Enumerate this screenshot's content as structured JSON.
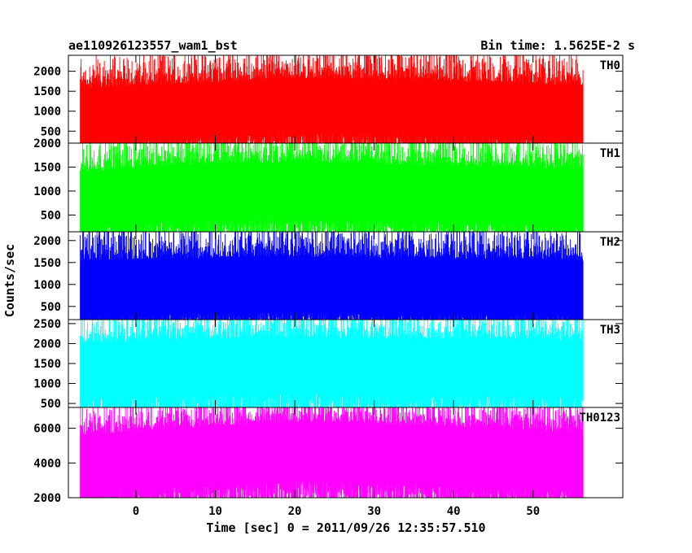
{
  "title_left": "ae110926123557_wam1_bst",
  "title_right": "Bin time: 1.5625E-2 s",
  "chart_data": {
    "type": "line",
    "xlabel": "Time [sec] 0 = 2011/09/26 12:35:57.510",
    "ylabel": "Counts/sec",
    "xlim": [
      -8.5,
      61.3
    ],
    "x_ticks": [
      0,
      10,
      20,
      30,
      40,
      50
    ],
    "x_ticks_labels": [
      "0",
      "10",
      "20",
      "30",
      "40",
      "50"
    ],
    "data_x_range": [
      -7.0,
      56.3
    ],
    "bin_time": 0.015625,
    "grid": false,
    "panels": [
      {
        "name": "TH0",
        "color": "#ff0000",
        "ylim": [
          200,
          2400
        ],
        "yticks": [
          500,
          1000,
          1500,
          2000
        ],
        "yticks_labels": [
          "500",
          "1000",
          "1500",
          "2000"
        ],
        "mean": 1050,
        "noise_low": 300,
        "noise_high": 2400,
        "envelope": [
          [
            -7,
            950
          ],
          [
            5,
            1050
          ],
          [
            20,
            1200
          ],
          [
            35,
            1150
          ],
          [
            50,
            1050
          ],
          [
            56.3,
            1000
          ]
        ]
      },
      {
        "name": "TH1",
        "color": "#00ff00",
        "ylim": [
          150,
          2000
        ],
        "yticks": [
          500,
          1000,
          1500,
          2000
        ],
        "yticks_labels": [
          "500",
          "1000",
          "1500",
          "2000"
        ],
        "mean": 950,
        "noise_low": 200,
        "noise_high": 2000,
        "envelope": [
          [
            -7,
            850
          ],
          [
            5,
            1000
          ],
          [
            20,
            1050
          ],
          [
            35,
            1000
          ],
          [
            50,
            950
          ],
          [
            56.3,
            900
          ]
        ]
      },
      {
        "name": "TH2",
        "color": "#0000ff",
        "ylim": [
          200,
          2200
        ],
        "yticks": [
          500,
          1000,
          1500,
          2000
        ],
        "yticks_labels": [
          "500",
          "1000",
          "1500",
          "2000"
        ],
        "mean": 1000,
        "noise_low": 250,
        "noise_high": 2200,
        "envelope": [
          [
            -7,
            950
          ],
          [
            5,
            1000
          ],
          [
            20,
            1050
          ],
          [
            35,
            1000
          ],
          [
            50,
            1000
          ],
          [
            56.3,
            950
          ]
        ]
      },
      {
        "name": "TH3",
        "color": "#00ffff",
        "ylim": [
          400,
          2600
        ],
        "yticks": [
          500,
          1000,
          1500,
          2000,
          2500
        ],
        "yticks_labels": [
          "500",
          "1000",
          "1500",
          "2000",
          "2500"
        ],
        "mean": 1450,
        "noise_low": 450,
        "noise_high": 2600,
        "envelope": [
          [
            -7,
            1350
          ],
          [
            5,
            1450
          ],
          [
            20,
            1500
          ],
          [
            35,
            1450
          ],
          [
            50,
            1450
          ],
          [
            56.3,
            1400
          ]
        ]
      },
      {
        "name": "TH0123",
        "color": "#ff00ff",
        "ylim": [
          2000,
          7200
        ],
        "yticks": [
          2000,
          4000,
          6000
        ],
        "yticks_labels": [
          "2000",
          "4000",
          "6000"
        ],
        "mean": 4400,
        "noise_low": 2000,
        "noise_high": 7200,
        "envelope": [
          [
            -7,
            4000
          ],
          [
            5,
            4400
          ],
          [
            20,
            4800
          ],
          [
            35,
            4600
          ],
          [
            50,
            4300
          ],
          [
            56.3,
            4200
          ]
        ]
      }
    ]
  }
}
